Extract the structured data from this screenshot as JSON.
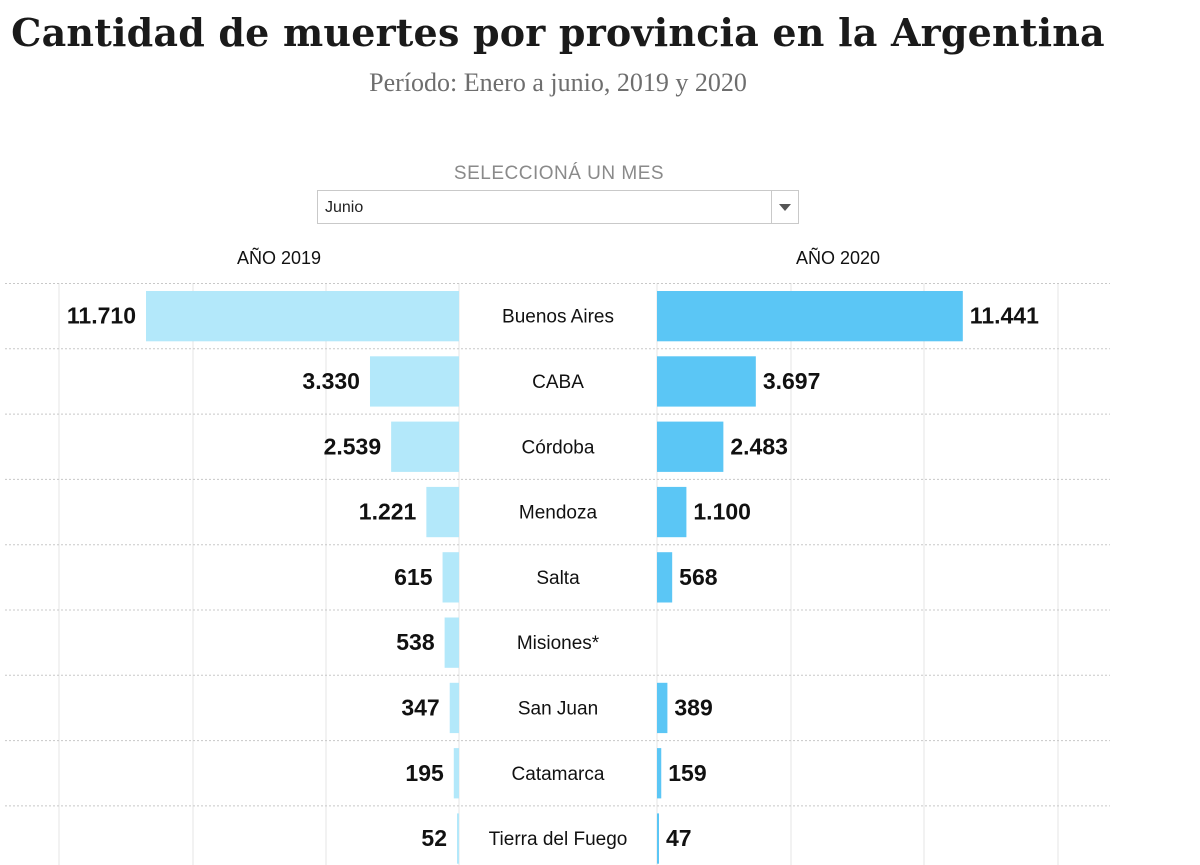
{
  "title": "Cantidad de muertes por provincia en la Argentina",
  "subtitle": "Período: Enero a junio, 2019 y 2020",
  "selector": {
    "label": "SELECCIONÁ UN MES",
    "value": "Junio"
  },
  "colors": {
    "bar2019": "#b3e8fa",
    "bar2020": "#5bc6f5",
    "grid": "#c8c8c8"
  },
  "chart_data": {
    "type": "bar",
    "orientation": "horizontal-butterfly",
    "month": "Junio",
    "series": [
      {
        "name": "AÑO 2019",
        "values": [
          11710,
          3330,
          2539,
          1221,
          615,
          538,
          347,
          195,
          52
        ]
      },
      {
        "name": "AÑO 2020",
        "values": [
          11441,
          3697,
          2483,
          1100,
          568,
          null,
          389,
          159,
          47
        ]
      }
    ],
    "categories": [
      "Buenos Aires",
      "CABA",
      "Córdoba",
      "Mendoza",
      "Salta",
      "Misiones*",
      "San Juan",
      "Catamarca",
      "Tierra del Fuego"
    ],
    "labels2019": [
      "11.710",
      "3.330",
      "2.539",
      "1.221",
      "615",
      "538",
      "347",
      "195",
      "52"
    ],
    "labels2020": [
      "11.441",
      "3.697",
      "2.483",
      "1.100",
      "568",
      "",
      "389",
      "159",
      "47"
    ],
    "xlim": [
      0,
      11710
    ]
  }
}
